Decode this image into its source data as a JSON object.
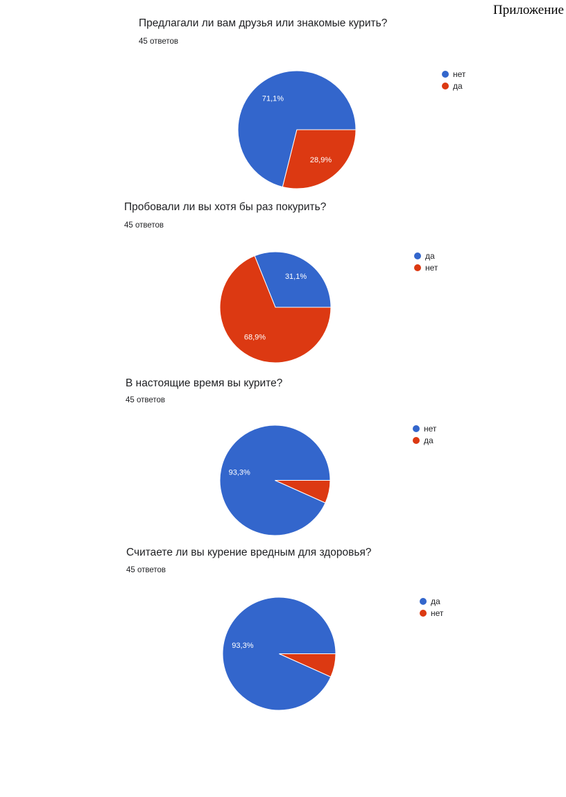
{
  "page": {
    "appendix_label": "Приложение"
  },
  "chart_data": [
    {
      "type": "pie",
      "title": "Предлагали ли вам друзья или знакомые курить?",
      "subtitle": "45 ответов",
      "legend": "right",
      "slices": [
        {
          "label": "нет",
          "value": 71.1,
          "value_label": "71,1%",
          "color": "#3366cc"
        },
        {
          "label": "да",
          "value": 28.9,
          "value_label": "28,9%",
          "color": "#dc3912"
        }
      ]
    },
    {
      "type": "pie",
      "title": "Пробовали ли вы хотя бы раз покурить?",
      "subtitle": "45 ответов",
      "legend": "right",
      "slices": [
        {
          "label": "да",
          "value": 31.1,
          "value_label": "31,1%",
          "color": "#3366cc"
        },
        {
          "label": "нет",
          "value": 68.9,
          "value_label": "68,9%",
          "color": "#dc3912"
        }
      ]
    },
    {
      "type": "pie",
      "title": "В настоящие время вы курите?",
      "subtitle": "45 ответов",
      "legend": "right",
      "slices": [
        {
          "label": "нет",
          "value": 93.3,
          "value_label": "93,3%",
          "color": "#3366cc"
        },
        {
          "label": "да",
          "value": 6.7,
          "value_label": "",
          "color": "#dc3912"
        }
      ]
    },
    {
      "type": "pie",
      "title": "Считаете ли вы курение вредным для здоровья?",
      "subtitle": "45 ответов",
      "legend": "right",
      "slices": [
        {
          "label": "да",
          "value": 93.3,
          "value_label": "93,3%",
          "color": "#3366cc"
        },
        {
          "label": "нет",
          "value": 6.7,
          "value_label": "",
          "color": "#dc3912"
        }
      ]
    }
  ]
}
